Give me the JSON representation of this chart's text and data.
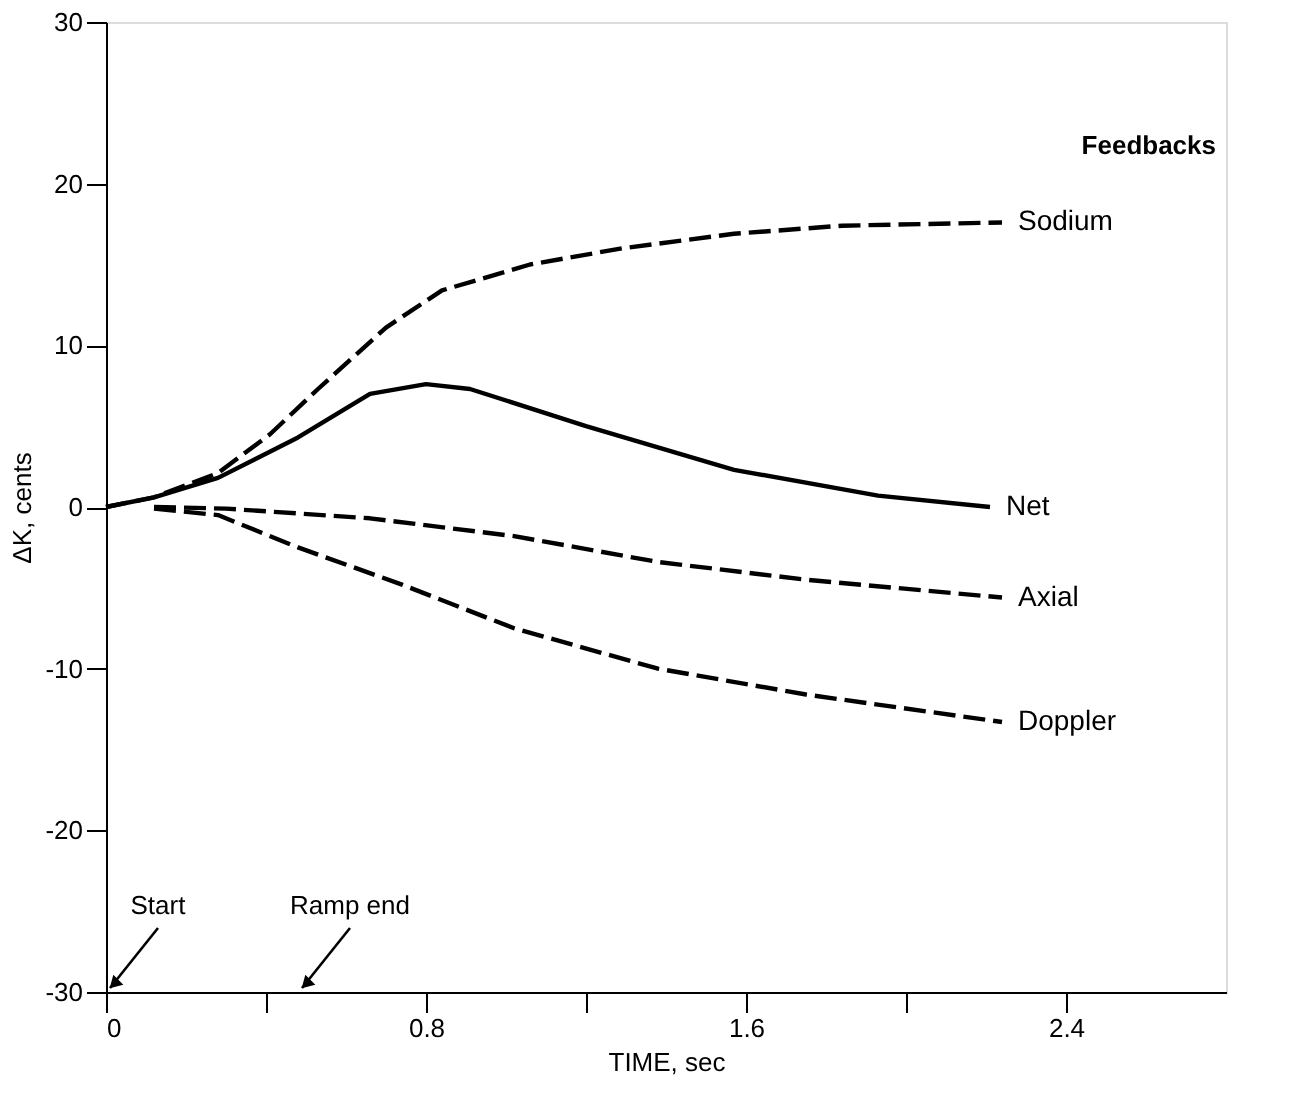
{
  "chart_data": {
    "type": "line",
    "xlabel": "TIME, sec",
    "ylabel": "ΔK, cents",
    "legend_title": "Feedbacks",
    "xlim": [
      0,
      2.8
    ],
    "ylim": [
      -30,
      30
    ],
    "xticks": [
      0,
      {
        "value": 0.4,
        "label": null
      },
      0.8,
      {
        "value": 1.2,
        "label": null
      },
      1.6,
      {
        "value": 2.0,
        "label": null
      },
      2.4
    ],
    "yticks": [
      -30,
      -20,
      -10,
      0,
      10,
      20,
      30
    ],
    "grid": false,
    "legend": "right",
    "marker": "none",
    "series": [
      {
        "name": "Sodium",
        "color": "#000000",
        "line_style": "dashed",
        "x": [
          0,
          0.12,
          0.28,
          0.41,
          0.53,
          0.7,
          0.84,
          1.06,
          1.29,
          1.57,
          1.84,
          2.24
        ],
        "values": [
          0,
          0.6,
          2.1,
          4.5,
          7.3,
          11.1,
          13.4,
          15,
          16,
          16.9,
          17.4,
          17.6
        ]
      },
      {
        "name": "Net",
        "color": "#000000",
        "line_style": "solid",
        "x": [
          0,
          0.12,
          0.28,
          0.48,
          0.66,
          0.8,
          0.91,
          1.2,
          1.57,
          1.93,
          2.21
        ],
        "values": [
          0,
          0.6,
          1.8,
          4.3,
          7.0,
          7.6,
          7.3,
          5.0,
          2.3,
          0.7,
          0
        ]
      },
      {
        "name": "Axial",
        "color": "#000000",
        "line_style": "dashed",
        "x": [
          0.12,
          0.3,
          0.66,
          1.02,
          1.38,
          1.75,
          2.24
        ],
        "values": [
          0,
          -0.1,
          -0.7,
          -1.8,
          -3.4,
          -4.5,
          -5.6
        ]
      },
      {
        "name": "Doppler",
        "color": "#000000",
        "line_style": "dashed",
        "x": [
          0.12,
          0.28,
          0.48,
          0.74,
          1.02,
          1.38,
          1.75,
          2.24
        ],
        "values": [
          -0.1,
          -0.5,
          -2.5,
          -4.8,
          -7.5,
          -10,
          -11.6,
          -13.3
        ]
      }
    ],
    "annotations": [
      "Start",
      "Ramp end"
    ]
  }
}
